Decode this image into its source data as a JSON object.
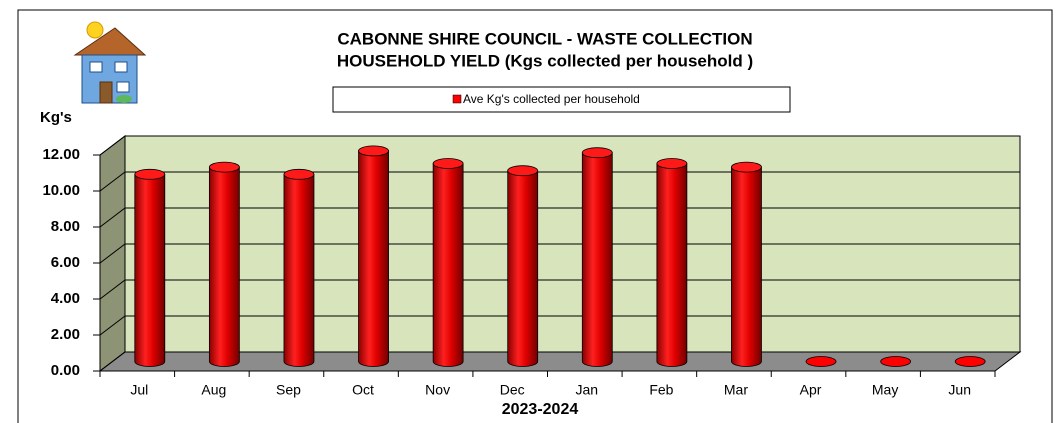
{
  "chart_data": {
    "type": "bar",
    "title": "CABONNE SHIRE COUNCIL - WASTE COLLECTION",
    "subtitle": "HOUSEHOLD YIELD (Kgs collected per household )",
    "y_label": "Kg's",
    "x_label": "2023-2024",
    "categories": [
      "Jul",
      "Aug",
      "Sep",
      "Oct",
      "Nov",
      "Dec",
      "Jan",
      "Feb",
      "Mar",
      "Apr",
      "May",
      "Jun"
    ],
    "series": [
      {
        "name": "Ave Kg's collected per household",
        "color": "#ff0000",
        "values": [
          10.4,
          10.8,
          10.4,
          11.7,
          11.0,
          10.6,
          11.6,
          11.0,
          10.8,
          0,
          0,
          0
        ]
      }
    ],
    "ylim": [
      0,
      12
    ],
    "yticks": [
      {
        "value": 0,
        "label": "0.00"
      },
      {
        "value": 2,
        "label": "2.00"
      },
      {
        "value": 4,
        "label": "4.00"
      },
      {
        "value": 6,
        "label": "6.00"
      },
      {
        "value": 8,
        "label": "8.00"
      },
      {
        "value": 10,
        "label": "10.00"
      },
      {
        "value": 12,
        "label": "12.00"
      }
    ],
    "grid": true
  }
}
